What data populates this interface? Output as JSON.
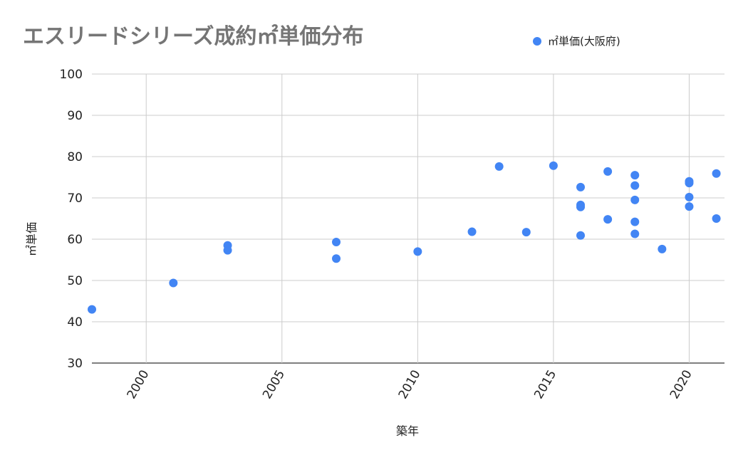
{
  "chart_data": {
    "type": "scatter",
    "title": "エスリードシリーズ成約㎡単価分布",
    "xlabel": "築年",
    "ylabel": "㎡単価",
    "xlim": [
      1998,
      2021.3
    ],
    "ylim": [
      30,
      100
    ],
    "x_ticks": [
      2000,
      2005,
      2010,
      2015,
      2020
    ],
    "y_ticks": [
      30,
      40,
      50,
      60,
      70,
      80,
      90,
      100
    ],
    "grid": true,
    "legend_position": "top-right",
    "series": [
      {
        "name": "㎡単価(大阪府)",
        "color": "#4285f4",
        "points": [
          {
            "x": 1998,
            "y": 43.0
          },
          {
            "x": 2001,
            "y": 49.4
          },
          {
            "x": 2003,
            "y": 58.5
          },
          {
            "x": 2003,
            "y": 57.3
          },
          {
            "x": 2007,
            "y": 59.3
          },
          {
            "x": 2007,
            "y": 55.3
          },
          {
            "x": 2010,
            "y": 57.0
          },
          {
            "x": 2012,
            "y": 61.8
          },
          {
            "x": 2013,
            "y": 77.6
          },
          {
            "x": 2014,
            "y": 61.7
          },
          {
            "x": 2015,
            "y": 77.8
          },
          {
            "x": 2016,
            "y": 72.6
          },
          {
            "x": 2016,
            "y": 68.3
          },
          {
            "x": 2016,
            "y": 67.8
          },
          {
            "x": 2016,
            "y": 60.9
          },
          {
            "x": 2017,
            "y": 76.4
          },
          {
            "x": 2017,
            "y": 64.8
          },
          {
            "x": 2018,
            "y": 75.5
          },
          {
            "x": 2018,
            "y": 73.0
          },
          {
            "x": 2018,
            "y": 69.5
          },
          {
            "x": 2018,
            "y": 64.2
          },
          {
            "x": 2018,
            "y": 61.3
          },
          {
            "x": 2019,
            "y": 57.6
          },
          {
            "x": 2020,
            "y": 74.0
          },
          {
            "x": 2020,
            "y": 73.6
          },
          {
            "x": 2020,
            "y": 70.2
          },
          {
            "x": 2020,
            "y": 67.9
          },
          {
            "x": 2021,
            "y": 75.9
          },
          {
            "x": 2021,
            "y": 65.0
          }
        ]
      }
    ]
  }
}
